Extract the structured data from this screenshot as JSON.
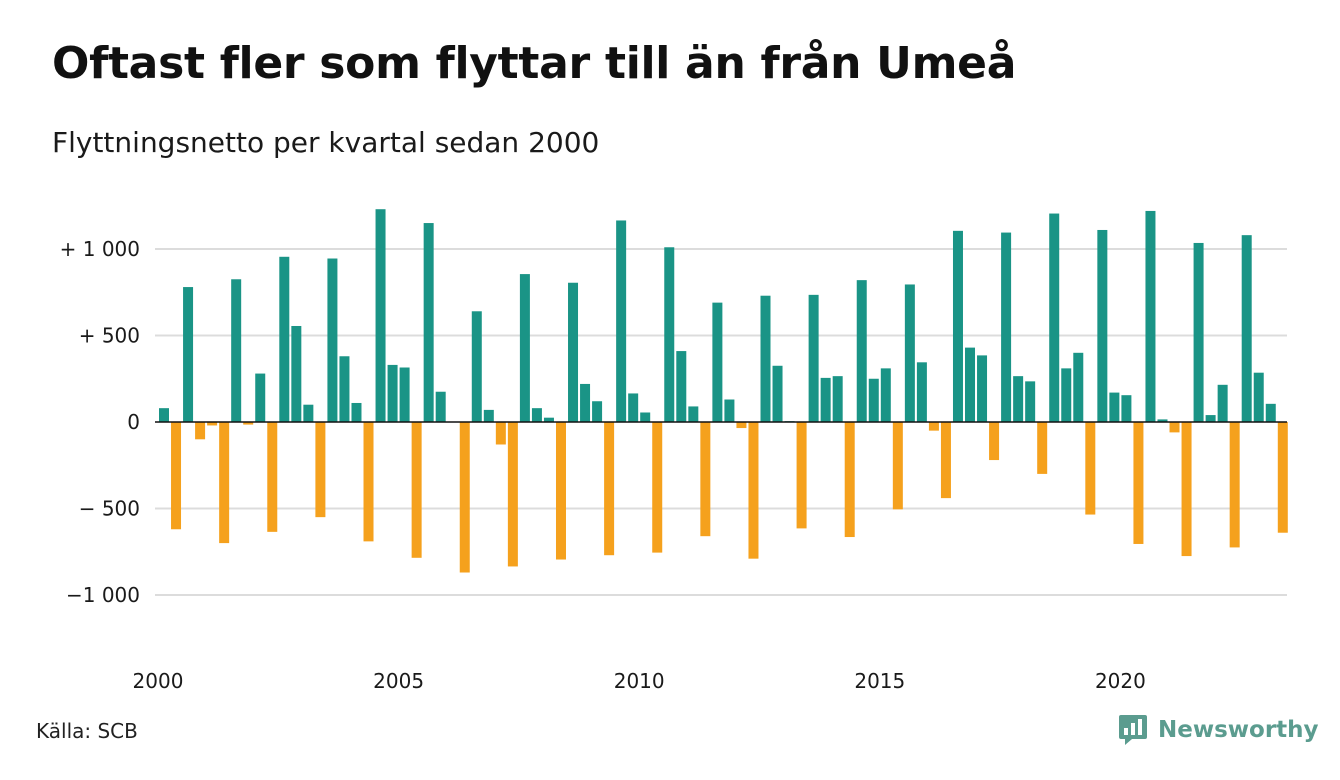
{
  "header": {
    "title": "Oftast fler som flyttar till än från Umeå",
    "subtitle": "Flyttningsnetto per kvartal sedan 2000"
  },
  "footer": {
    "source": "Källa: SCB",
    "brand_name": "Newsworthy",
    "brand_icon": "newsworthy-logo-icon"
  },
  "colors": {
    "positive": "#1a9486",
    "negative": "#f5a11d",
    "grid": "#dcdcdc",
    "axis": "#111111",
    "brand": "#5b9c8f"
  },
  "chart_data": {
    "type": "bar",
    "title": "Oftast fler som flyttar till än från Umeå",
    "subtitle": "Flyttningsnetto per kvartal sedan 2000",
    "xlabel": "",
    "ylabel": "",
    "ylim": [
      -1200,
      1250
    ],
    "grid": true,
    "legend": "none",
    "y_ticks": [
      {
        "value": 1000,
        "label": "+ 1 000"
      },
      {
        "value": 500,
        "label": "+   500"
      },
      {
        "value": 0,
        "label": "0"
      },
      {
        "value": -500,
        "label": "−   500"
      },
      {
        "value": -1000,
        "label": "−1 000"
      }
    ],
    "x_ticks": [
      {
        "value": 2000,
        "label": "2000"
      },
      {
        "value": 2005,
        "label": "2005"
      },
      {
        "value": 2010,
        "label": "2010"
      },
      {
        "value": 2015,
        "label": "2015"
      },
      {
        "value": 2020,
        "label": "2020"
      }
    ],
    "x_start": 2000,
    "periods_per_year": 4,
    "values": [
      80,
      -620,
      780,
      -100,
      -20,
      -700,
      825,
      -15,
      280,
      -635,
      955,
      555,
      100,
      -550,
      945,
      380,
      110,
      -690,
      1230,
      330,
      315,
      -785,
      1150,
      175,
      0,
      -870,
      640,
      70,
      -130,
      -835,
      855,
      80,
      25,
      -795,
      805,
      220,
      120,
      -770,
      1165,
      165,
      55,
      -755,
      1010,
      410,
      90,
      -660,
      690,
      130,
      -35,
      -790,
      730,
      325,
      5,
      -615,
      735,
      255,
      265,
      -665,
      820,
      250,
      310,
      -505,
      795,
      345,
      -50,
      -440,
      1105,
      430,
      385,
      -220,
      1095,
      265,
      235,
      -300,
      1205,
      310,
      400,
      -535,
      1110,
      170,
      155,
      -705,
      1220,
      15,
      -60,
      -775,
      1035,
      40,
      215,
      -725,
      1080,
      285,
      105,
      -640
    ]
  }
}
